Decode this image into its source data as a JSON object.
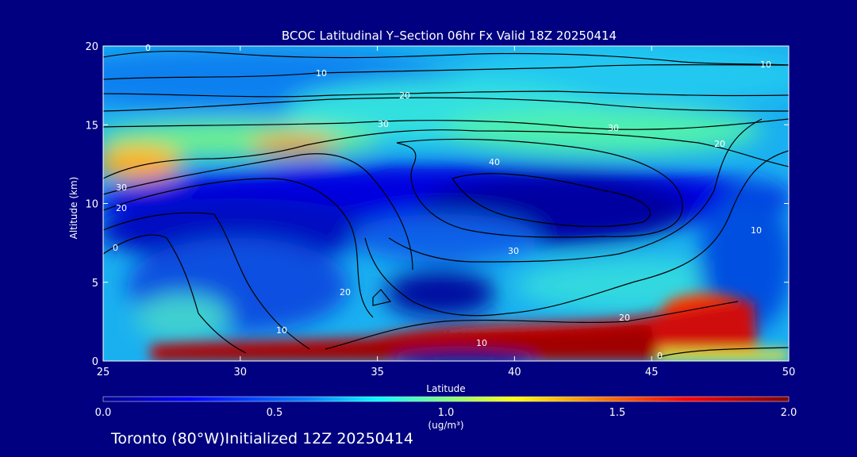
{
  "background_color": "#000080",
  "chart_data": {
    "type": "heatmap",
    "title": "BCOC Latitudinal Y–Section 06hr  Fx Valid 18Z 20250414",
    "xlabel": "Latitude",
    "ylabel": "Altitude (km)",
    "xlim": [
      25,
      50
    ],
    "ylim": [
      0,
      20
    ],
    "x_ticks": [
      25,
      30,
      35,
      40,
      45,
      50
    ],
    "y_ticks": [
      0,
      5,
      10,
      15,
      20
    ],
    "colorbar": {
      "range": [
        0.0,
        2.0
      ],
      "ticks": [
        "0.0",
        "0.5",
        "1.0",
        "1.5",
        "2.0"
      ],
      "unit_label": "(ug/m³)",
      "colormap": [
        "#00008f",
        "#0000ff",
        "#0080ff",
        "#00ffff",
        "#80ff80",
        "#ffff00",
        "#ff8000",
        "#ff0000",
        "#800000"
      ]
    },
    "contour_labels": [
      "0",
      "10",
      "20",
      "30",
      "40"
    ],
    "footer": "Toronto (80°W)Initialized 12Z 20250414"
  }
}
